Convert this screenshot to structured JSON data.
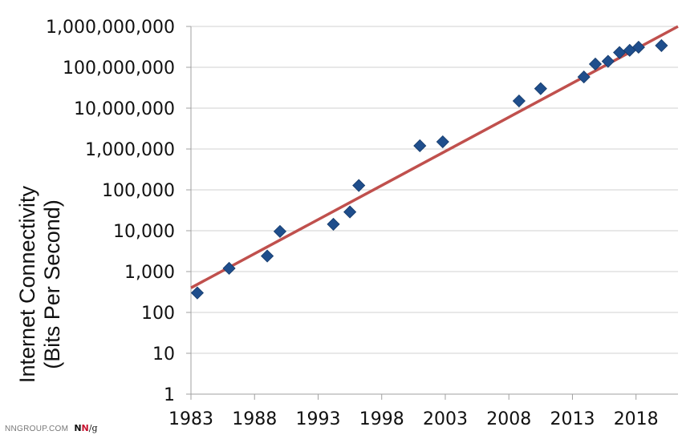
{
  "chart_data": {
    "type": "scatter",
    "ylabel_line1": "Internet Connectivity",
    "ylabel_line2": "(Bits Per Second)",
    "y_scale": "log",
    "ylim": [
      1,
      1000000000
    ],
    "xlim": [
      1983,
      2021.3
    ],
    "x_ticks": [
      1983,
      1988,
      1993,
      1998,
      2003,
      2008,
      2013,
      2018
    ],
    "y_ticks": [
      {
        "value": 1,
        "label": "1"
      },
      {
        "value": 10,
        "label": "10"
      },
      {
        "value": 100,
        "label": "100"
      },
      {
        "value": 1000,
        "label": "1,000"
      },
      {
        "value": 10000,
        "label": "10,000"
      },
      {
        "value": 100000,
        "label": "100,000"
      },
      {
        "value": 1000000,
        "label": "1,000,000"
      },
      {
        "value": 10000000,
        "label": "10,000,000"
      },
      {
        "value": 100000000,
        "label": "100,000,000"
      },
      {
        "value": 1000000000,
        "label": "1,000,000,000"
      }
    ],
    "grid": "horizontal",
    "points": [
      {
        "x": 1983.5,
        "y": 300
      },
      {
        "x": 1986,
        "y": 1200
      },
      {
        "x": 1989,
        "y": 2400
      },
      {
        "x": 1990,
        "y": 9600
      },
      {
        "x": 1994.2,
        "y": 14400
      },
      {
        "x": 1995.5,
        "y": 28800
      },
      {
        "x": 1996.2,
        "y": 128000
      },
      {
        "x": 2001,
        "y": 1200000
      },
      {
        "x": 2002.8,
        "y": 1500000
      },
      {
        "x": 2008.8,
        "y": 15000000
      },
      {
        "x": 2010.5,
        "y": 30000000
      },
      {
        "x": 2013.9,
        "y": 58000000
      },
      {
        "x": 2014.8,
        "y": 120000000
      },
      {
        "x": 2015.8,
        "y": 140000000
      },
      {
        "x": 2016.7,
        "y": 230000000
      },
      {
        "x": 2017.5,
        "y": 260000000
      },
      {
        "x": 2018.2,
        "y": 310000000
      },
      {
        "x": 2020,
        "y": 340000000
      }
    ],
    "trendline": [
      {
        "x": 1983,
        "y": 400
      },
      {
        "x": 2021.3,
        "y": 1000000000
      }
    ],
    "colors": {
      "points": "#1f4e8c",
      "trendline": "#c0504d",
      "grid": "#d0d0d0",
      "axis": "#a0a0a0"
    }
  },
  "footer": {
    "site": "NNGROUP.COM",
    "logo_n1": "N",
    "logo_n2": "N",
    "logo_g": "/g"
  }
}
